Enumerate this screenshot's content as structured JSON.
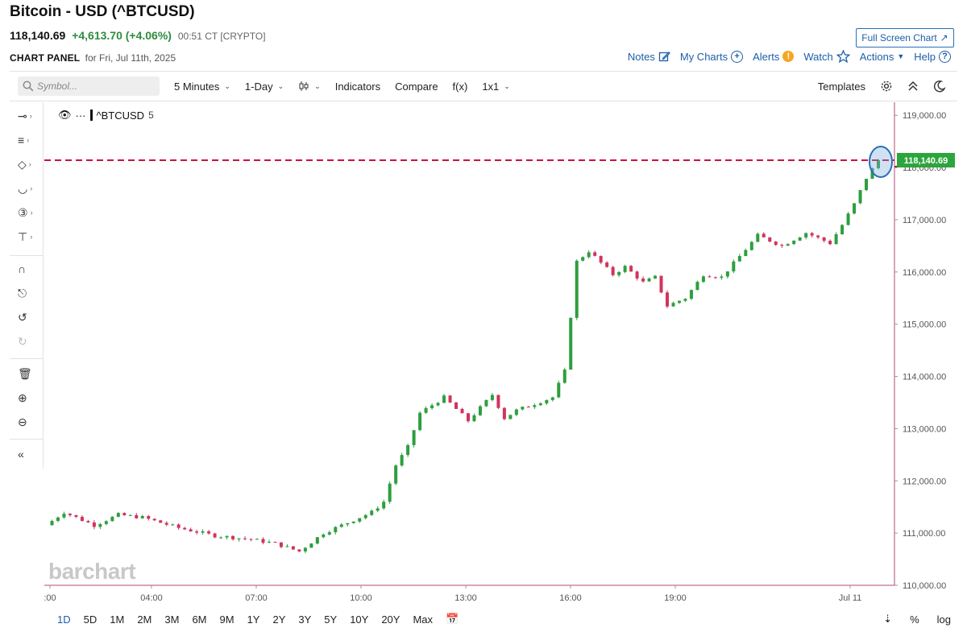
{
  "header": {
    "title": "Bitcoin - USD (^BTCUSD)",
    "last": "118,140.69",
    "change": "+4,613.70 (+4.06%)",
    "time": "00:51 CT [CRYPTO]",
    "fullscreen_label": "Full Screen Chart",
    "panel_label": "CHART PANEL",
    "panel_date": "for Fri, Jul 11th, 2025",
    "links": {
      "notes": "Notes",
      "my_charts": "My Charts",
      "alerts": "Alerts",
      "watch": "Watch",
      "actions": "Actions",
      "help": "Help"
    }
  },
  "toolbar": {
    "symbol_placeholder": "Symbol...",
    "interval": "5 Minutes",
    "range": "1-Day",
    "indicators": "Indicators",
    "compare": "Compare",
    "fx": "f(x)",
    "layout": "1x1",
    "templates": "Templates"
  },
  "legend": {
    "symbol": "^BTCUSD",
    "interval": "5"
  },
  "watermark": "barchart",
  "periods": [
    "1D",
    "5D",
    "1M",
    "2M",
    "3M",
    "6M",
    "9M",
    "1Y",
    "2Y",
    "3Y",
    "5Y",
    "10Y",
    "20Y",
    "Max"
  ],
  "bottom_right": {
    "percent": "%",
    "log": "log"
  },
  "colors": {
    "up": "#2e9e3e",
    "down": "#d2335c",
    "price_line": "#d0103a",
    "price_tag": "#2ca53d",
    "axis": "#b04878"
  },
  "chart_data": {
    "type": "candlestick",
    "x_ticks": [
      ":00",
      "04:00",
      "07:00",
      "10:00",
      "13:00",
      "16:00",
      "19:00",
      "Jul 11"
    ],
    "y_ticks": [
      "119,000.00",
      "118,000.00",
      "117,000.00",
      "116,000.00",
      "115,000.00",
      "114,000.00",
      "113,000.00",
      "112,000.00",
      "111,000.00",
      "110,000.00"
    ],
    "ylim": [
      110000,
      119250
    ],
    "last_price": 118140.69,
    "last_price_label": "118,140.69",
    "path": [
      [
        0,
        111150
      ],
      [
        3,
        111400
      ],
      [
        5,
        111300
      ],
      [
        8,
        111150
      ],
      [
        12,
        111350
      ],
      [
        16,
        111300
      ],
      [
        22,
        111100
      ],
      [
        28,
        110950
      ],
      [
        34,
        110880
      ],
      [
        38,
        110800
      ],
      [
        42,
        110650
      ],
      [
        46,
        111000
      ],
      [
        50,
        111200
      ],
      [
        54,
        111400
      ],
      [
        56,
        111600
      ],
      [
        58,
        112300
      ],
      [
        60,
        112650
      ],
      [
        62,
        113300
      ],
      [
        66,
        113600
      ],
      [
        70,
        113150
      ],
      [
        74,
        113650
      ],
      [
        76,
        113200
      ],
      [
        78,
        113350
      ],
      [
        84,
        113600
      ],
      [
        86,
        114100
      ],
      [
        88,
        116200
      ],
      [
        90,
        116400
      ],
      [
        94,
        115950
      ],
      [
        96,
        116100
      ],
      [
        99,
        115800
      ],
      [
        101,
        115900
      ],
      [
        103,
        115350
      ],
      [
        106,
        115500
      ],
      [
        109,
        115950
      ],
      [
        112,
        115900
      ],
      [
        115,
        116300
      ],
      [
        118,
        116700
      ],
      [
        122,
        116500
      ],
      [
        126,
        116750
      ],
      [
        130,
        116550
      ],
      [
        132,
        116900
      ],
      [
        134,
        117300
      ],
      [
        136,
        117800
      ],
      [
        138,
        118140.69
      ]
    ]
  }
}
